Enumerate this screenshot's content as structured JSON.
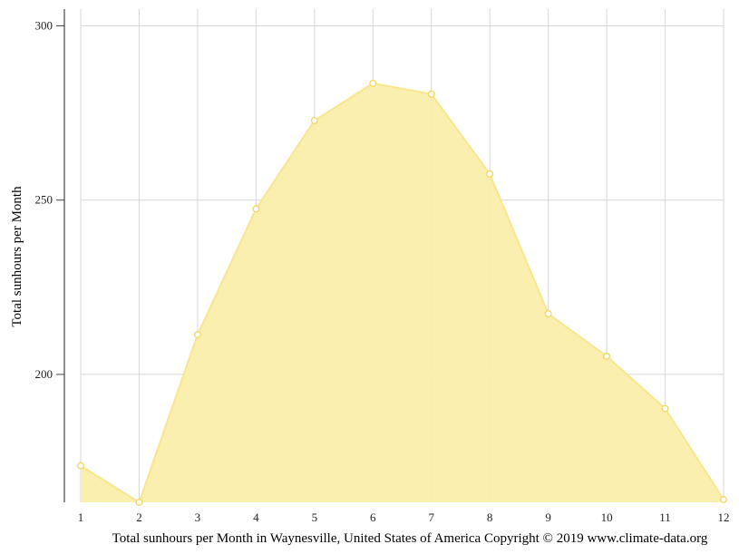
{
  "chart_data": {
    "type": "area",
    "title": "",
    "caption": "Total sunhours per Month in Waynesville, United States of America Copyright © 2019 www.climate-data.org",
    "xlabel": "",
    "ylabel": "Total sunhours per Month",
    "x": [
      1,
      2,
      3,
      4,
      5,
      6,
      7,
      8,
      9,
      10,
      11,
      12
    ],
    "x_tick_labels": [
      "1",
      "2",
      "3",
      "4",
      "5",
      "6",
      "7",
      "8",
      "9",
      "10",
      "11",
      "12"
    ],
    "y_ticks": [
      200,
      250,
      300
    ],
    "y_tick_labels": [
      "200",
      "250",
      "300"
    ],
    "ylim": [
      163.3,
      304.8
    ],
    "xlim": [
      1,
      12
    ],
    "grid": true,
    "series": [
      {
        "values": [
          173.8,
          163.3,
          211.4,
          247.5,
          272.8,
          283.5,
          280.4,
          257.5,
          217.4,
          205.2,
          190.2,
          164.1
        ]
      }
    ],
    "colors": {
      "fill": "#faeeab",
      "line": "#f8e58e",
      "marker": "#f2d86a",
      "grid": "#d6d6d6",
      "axis": "#444444"
    }
  }
}
